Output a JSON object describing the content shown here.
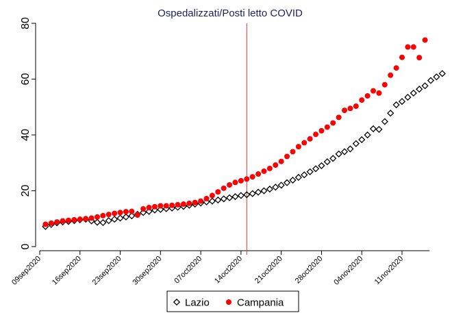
{
  "chart_data": {
    "type": "scatter",
    "title": "Ospedalizzati/Posti letto COVID",
    "xlabel": "",
    "ylabel": "",
    "ylim": [
      0,
      80
    ],
    "yticks": [
      0,
      20,
      40,
      60,
      80
    ],
    "xlim": [
      "2020-09-09",
      "2020-11-16"
    ],
    "xticks": [
      {
        "date": "2020-09-09",
        "label": "09sep2020"
      },
      {
        "date": "2020-09-16",
        "label": "16sep2020"
      },
      {
        "date": "2020-09-23",
        "label": "23sep2020"
      },
      {
        "date": "2020-09-30",
        "label": "30sep2020"
      },
      {
        "date": "2020-10-07",
        "label": "07oct2020"
      },
      {
        "date": "2020-10-14",
        "label": "14oct2020"
      },
      {
        "date": "2020-10-21",
        "label": "21oct2020"
      },
      {
        "date": "2020-10-28",
        "label": "28oct2020"
      },
      {
        "date": "2020-11-04",
        "label": "04nov2020"
      },
      {
        "date": "2020-11-11",
        "label": "11nov2020"
      }
    ],
    "reference_line": {
      "x": "2020-10-15",
      "color": "#e8342c"
    },
    "grid": false,
    "legend_position": "bottom",
    "x_start": "2020-09-10",
    "series": [
      {
        "name": "Lazio",
        "marker": "hollow-diamond",
        "color": "#000000",
        "values": [
          7.2,
          7.9,
          8.5,
          8.8,
          9.0,
          9.3,
          9.6,
          9.8,
          9.2,
          8.7,
          8.6,
          9.3,
          9.8,
          10.2,
          10.6,
          11.0,
          11.6,
          12.2,
          12.6,
          13.1,
          13.3,
          13.6,
          13.8,
          14.1,
          14.4,
          14.8,
          15.2,
          15.6,
          16.0,
          16.3,
          16.7,
          17.1,
          17.5,
          17.9,
          18.3,
          18.6,
          19.0,
          19.5,
          20.0,
          20.6,
          21.3,
          22.0,
          22.9,
          23.8,
          24.8,
          25.7,
          26.8,
          27.9,
          29.0,
          30.4,
          31.6,
          33.2,
          34.0,
          35.0,
          36.9,
          38.3,
          40.0,
          42.2,
          42.0,
          44.8,
          47.8,
          50.8,
          52.0,
          53.5,
          55.0,
          56.4,
          57.6,
          59.5,
          60.8,
          62.0
        ]
      },
      {
        "name": "Campania",
        "marker": "filled-circle",
        "color": "#ff0000",
        "values": [
          8.0,
          8.4,
          8.8,
          9.2,
          9.4,
          9.6,
          9.8,
          10.0,
          10.2,
          10.6,
          11.1,
          11.5,
          11.9,
          12.2,
          12.5,
          12.6,
          11.3,
          13.5,
          14.0,
          14.3,
          14.6,
          14.6,
          14.8,
          15.0,
          15.2,
          15.5,
          15.8,
          16.3,
          17.2,
          18.3,
          19.6,
          20.9,
          22.1,
          23.0,
          23.6,
          24.2,
          25.0,
          26.0,
          27.0,
          28.0,
          29.2,
          30.5,
          32.3,
          34.0,
          35.8,
          37.2,
          38.6,
          40.2,
          41.5,
          42.8,
          44.3,
          46.3,
          48.8,
          49.5,
          50.3,
          52.5,
          54.0,
          55.8,
          55.0,
          58.0,
          61.4,
          64.0,
          67.8,
          71.5,
          71.5,
          67.7,
          74.0
        ]
      }
    ]
  },
  "legend": {
    "items": [
      "Lazio",
      "Campania"
    ]
  }
}
